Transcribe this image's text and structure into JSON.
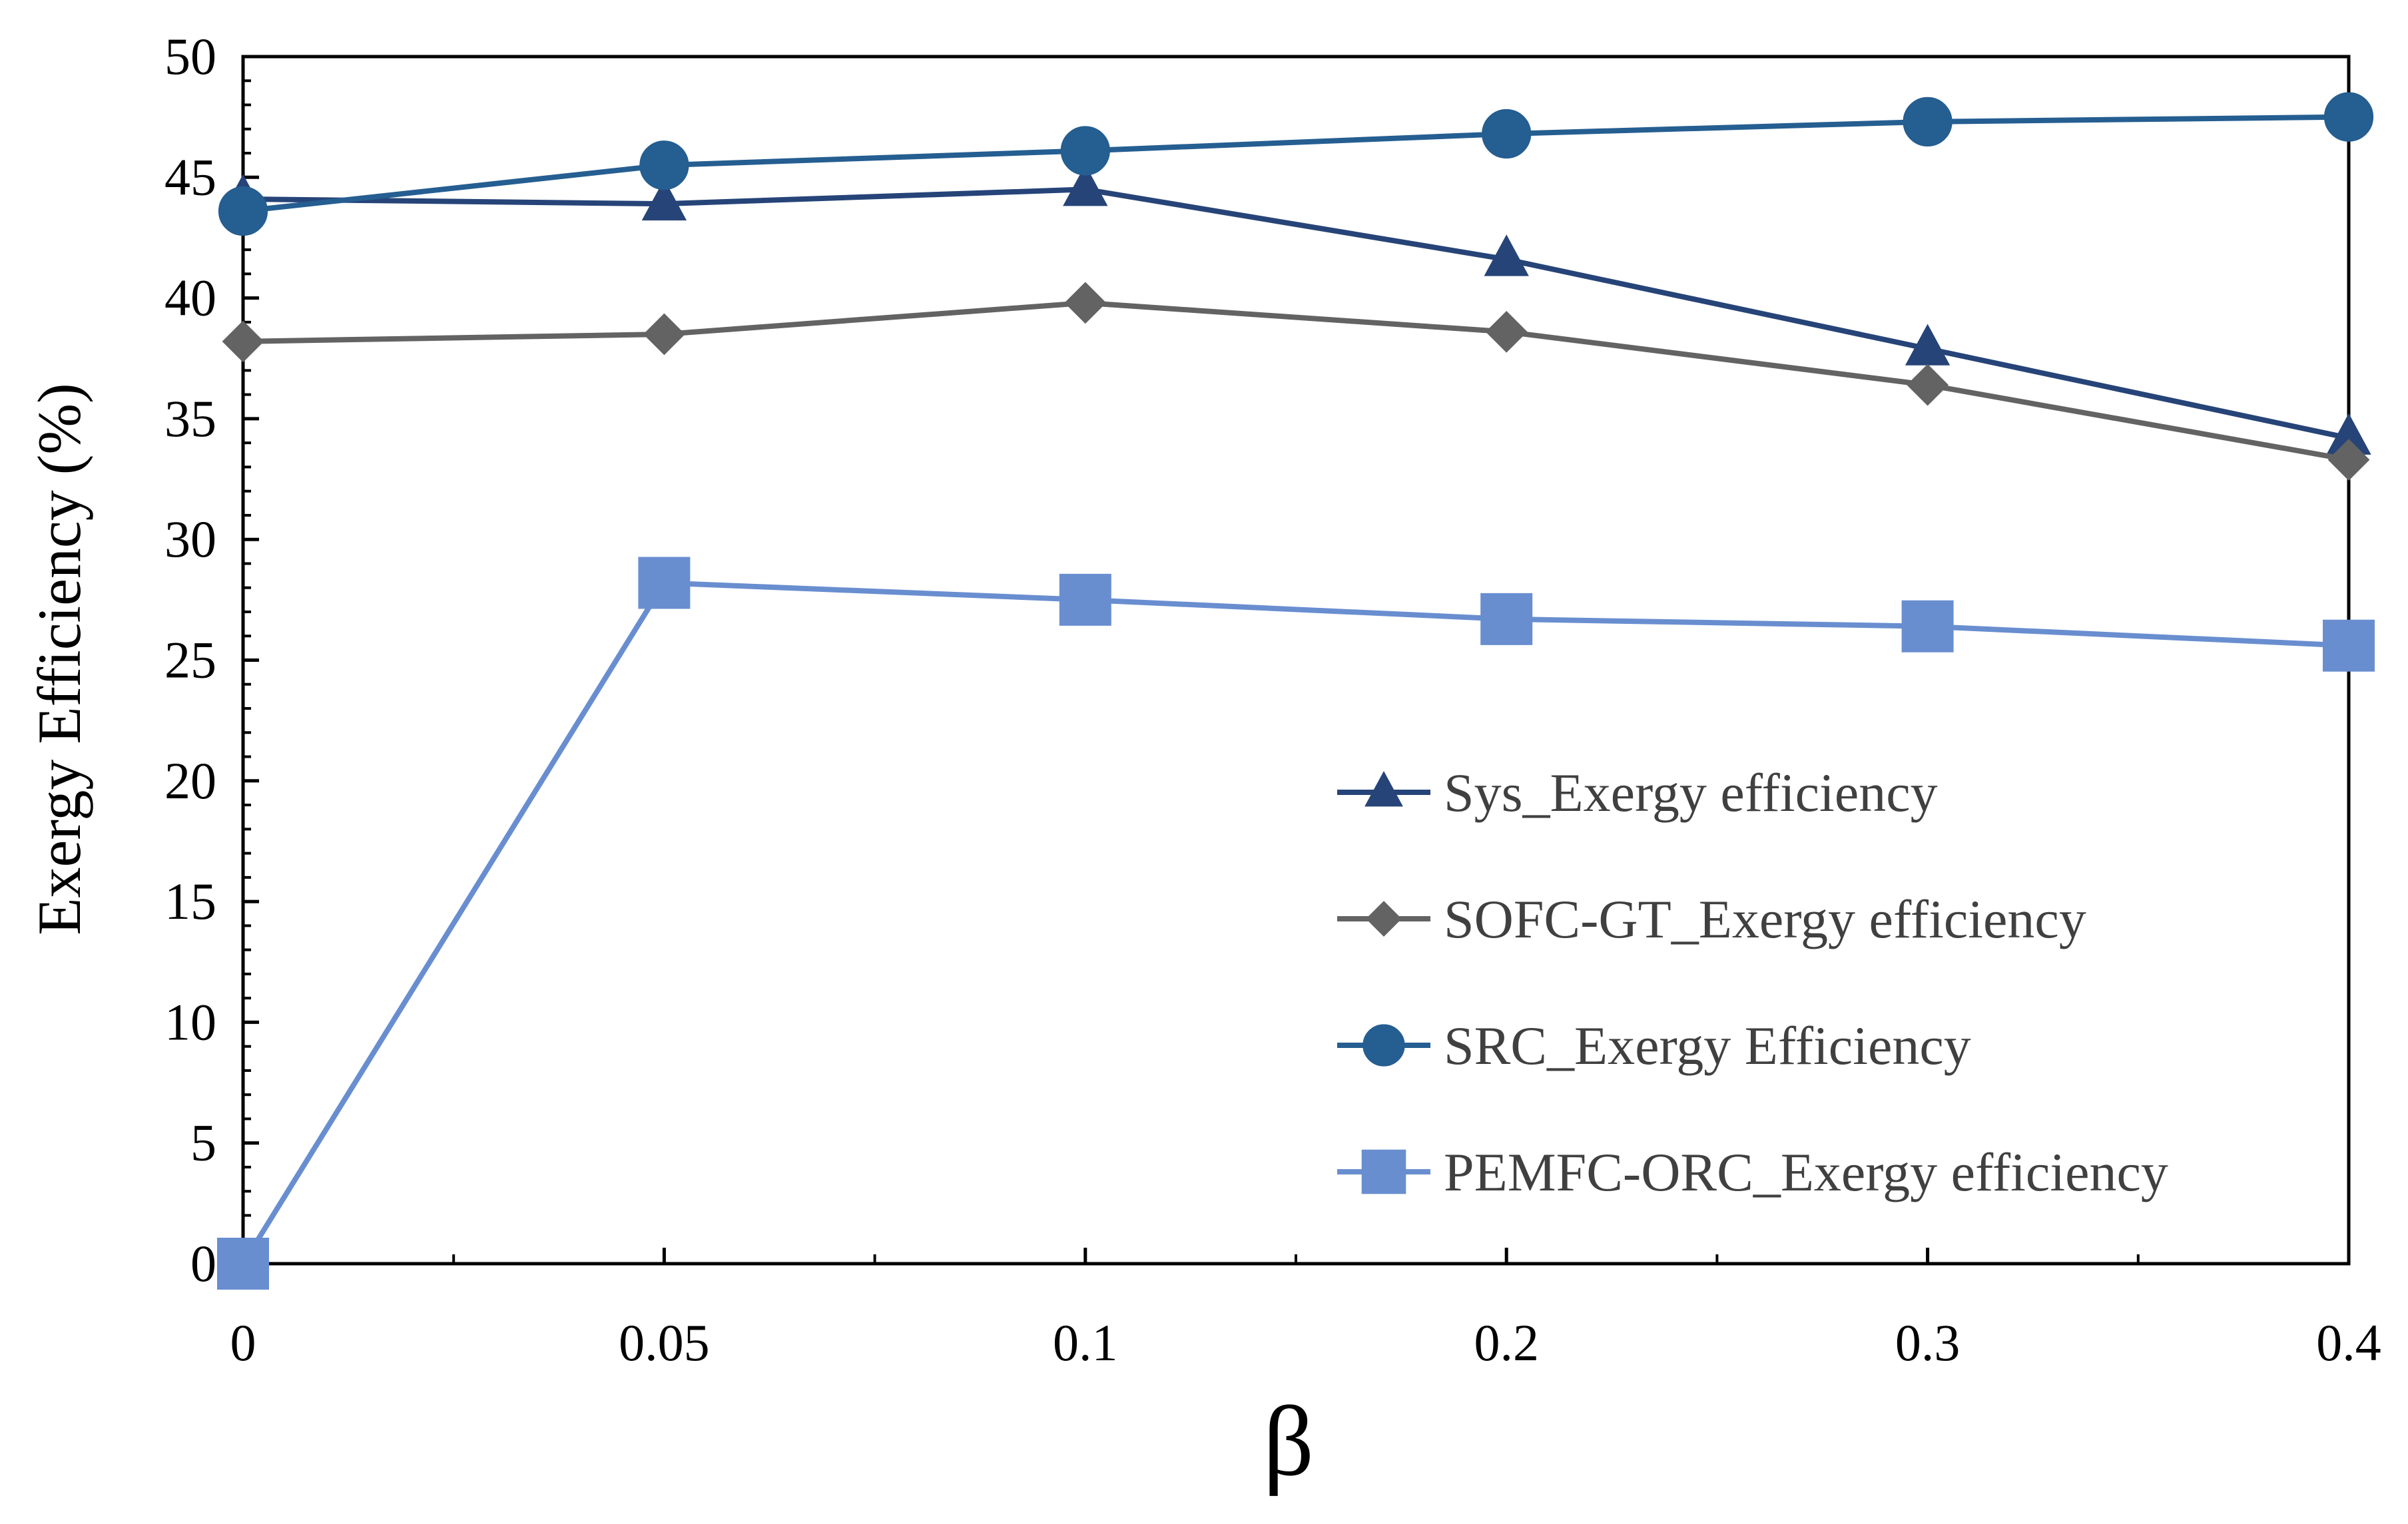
{
  "chart_data": {
    "type": "line",
    "xlabel": "β",
    "ylabel": "Exergy Efficiency (%)",
    "ylim": [
      0,
      50
    ],
    "y_ticks": [
      "0",
      "5",
      "10",
      "15",
      "20",
      "25",
      "30",
      "35",
      "40",
      "45",
      "50"
    ],
    "categories": [
      "0",
      "0.05",
      "0.1",
      "0.2",
      "0.3",
      "0.4"
    ],
    "grid": false,
    "legend_position": "bottom-right",
    "series": [
      {
        "name": "Sys_Exergy efficiency",
        "values": [
          44.1,
          43.9,
          44.5,
          41.6,
          37.9,
          34.2
        ],
        "color": "#264478",
        "marker": "triangle"
      },
      {
        "name": "SOFC-GT_Exergy efficiency",
        "values": [
          38.2,
          38.5,
          39.8,
          38.6,
          36.4,
          33.3
        ],
        "color": "#636363",
        "marker": "diamond"
      },
      {
        "name": "SRC_Exergy Efficiency",
        "values": [
          43.6,
          45.5,
          46.1,
          46.8,
          47.3,
          47.5
        ],
        "color": "#255E91",
        "marker": "circle"
      },
      {
        "name": "PEMFC-ORC_Exergy efficiency",
        "values": [
          0,
          28.2,
          27.5,
          26.7,
          26.4,
          25.6
        ],
        "color": "#698ED0",
        "marker": "square"
      }
    ]
  }
}
